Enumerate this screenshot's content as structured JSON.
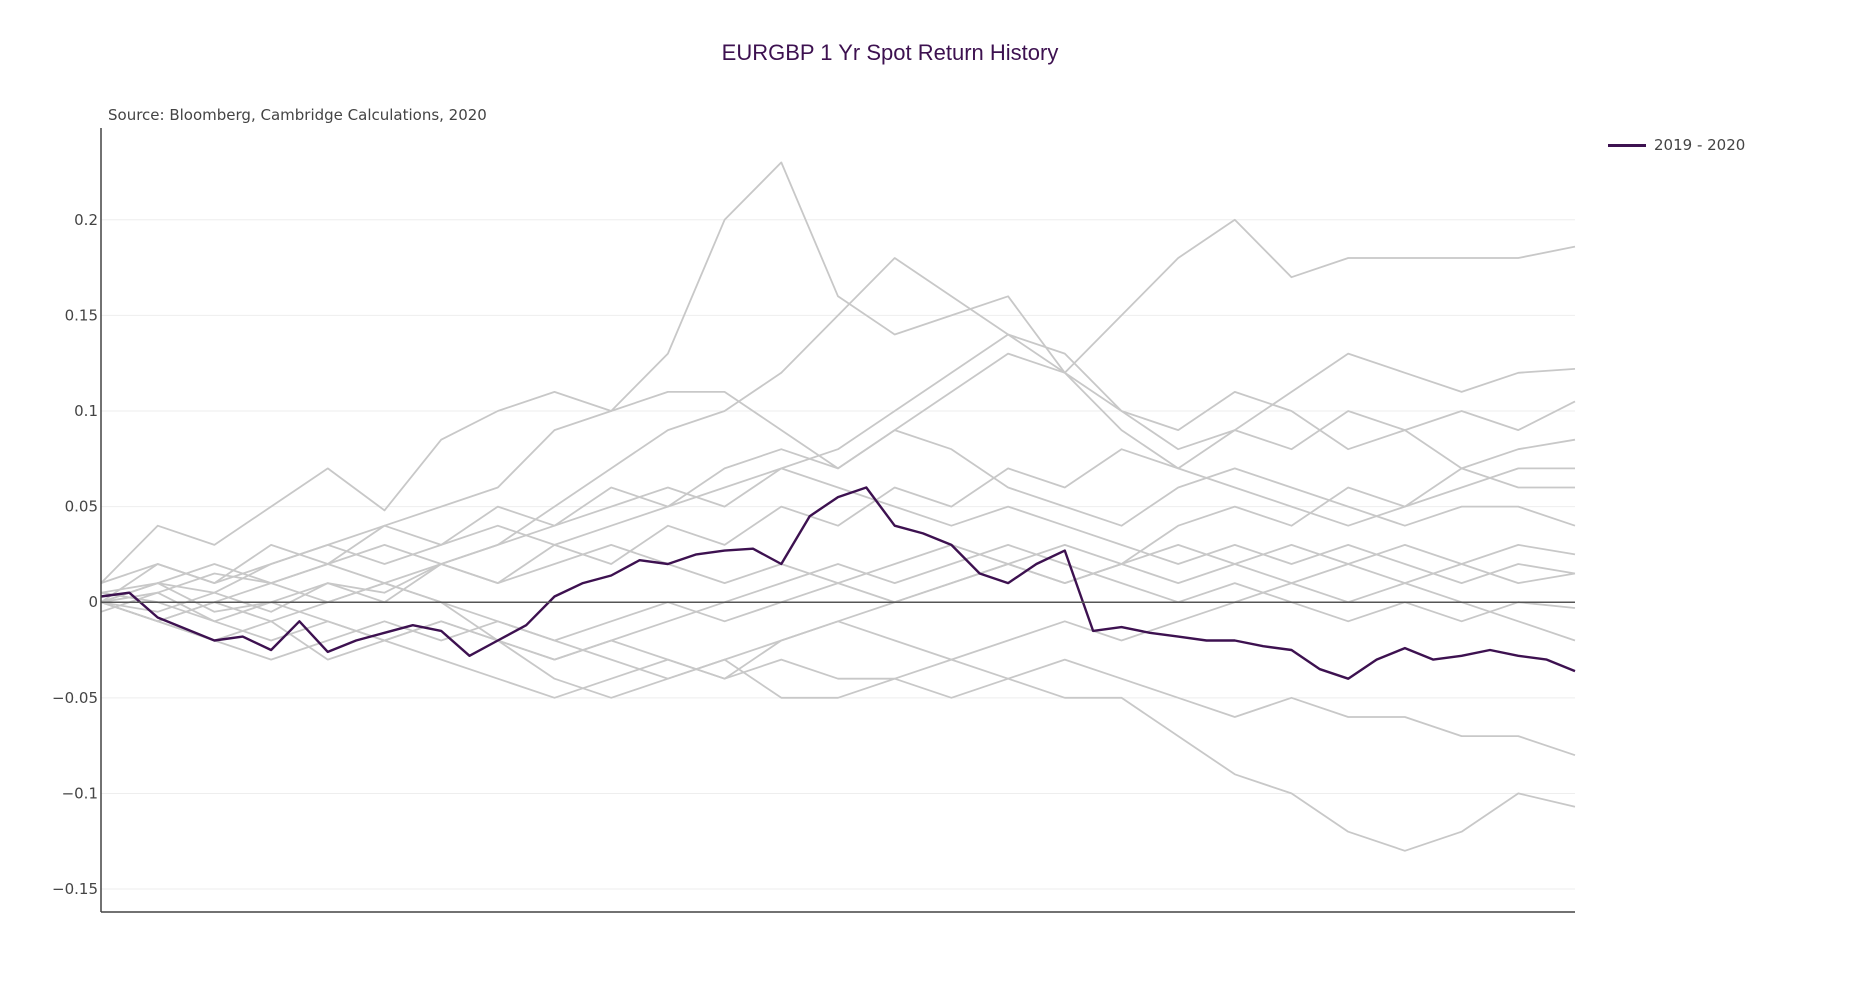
{
  "chart_data": {
    "type": "line",
    "title": "EURGBP 1 Yr Spot Return History",
    "annotation": "Source: Bloomberg, Cambridge Calculations, 2020",
    "xlabel": "",
    "ylabel": "",
    "ylim": [
      -0.162,
      0.248
    ],
    "y_ticks": [
      0.2,
      0.15,
      0.1,
      0.05,
      0,
      -0.05,
      -0.1,
      -0.15
    ],
    "y_tick_labels": [
      "0.2",
      "0.15",
      "0.1",
      "0.05",
      "0",
      "−0.05",
      "−0.1",
      "−0.15"
    ],
    "x_range": [
      0,
      260
    ],
    "grid": true,
    "legend_position": "top-right",
    "colors": {
      "highlight": "#3d1150",
      "history": "#c8c8c8",
      "zero_line": "#555555",
      "grid": "#eeeeee"
    },
    "series": [
      {
        "name": "2019 - 2020",
        "highlight": true,
        "x": [
          0,
          5,
          10,
          20,
          25,
          30,
          35,
          40,
          45,
          50,
          55,
          60,
          65,
          70,
          75,
          80,
          85,
          90,
          95,
          100,
          105,
          110,
          115,
          120,
          125,
          130,
          135,
          140,
          145,
          150,
          155,
          160,
          165,
          170,
          175,
          180,
          185,
          190,
          195,
          200,
          205,
          210,
          215,
          220,
          225,
          230,
          235,
          240,
          245,
          250,
          255,
          260
        ],
        "y": [
          0.003,
          0.005,
          -0.008,
          -0.02,
          -0.018,
          -0.025,
          -0.01,
          -0.026,
          -0.02,
          -0.016,
          -0.012,
          -0.015,
          -0.028,
          -0.02,
          -0.012,
          0.003,
          0.01,
          0.014,
          0.022,
          0.02,
          0.025,
          0.027,
          0.028,
          0.02,
          0.045,
          0.055,
          0.06,
          0.04,
          0.036,
          0.03,
          0.015,
          0.01,
          0.02,
          0.027,
          -0.015,
          -0.013,
          -0.016,
          -0.018,
          -0.02,
          -0.02,
          -0.023,
          -0.025,
          -0.035,
          -0.04,
          -0.03,
          -0.024,
          -0.03,
          -0.028,
          -0.025,
          -0.028,
          -0.03,
          -0.036
        ]
      },
      {
        "x": [
          0,
          10,
          20,
          30,
          40,
          50,
          60,
          70,
          80,
          90,
          100,
          110,
          120,
          130,
          140,
          150,
          160,
          170,
          180,
          190,
          200,
          210,
          220,
          230,
          240,
          250,
          260
        ],
        "y": [
          0.01,
          0.04,
          0.03,
          0.05,
          0.07,
          0.048,
          0.085,
          0.1,
          0.11,
          0.1,
          0.11,
          0.11,
          0.09,
          0.07,
          0.09,
          0.08,
          0.06,
          0.05,
          0.04,
          0.06,
          0.07,
          0.06,
          0.05,
          0.04,
          0.05,
          0.05,
          0.04
        ]
      },
      {
        "x": [
          0,
          10,
          20,
          30,
          40,
          50,
          60,
          70,
          80,
          90,
          100,
          110,
          120,
          130,
          140,
          150,
          160,
          170,
          180,
          190,
          200,
          210,
          220,
          230,
          240,
          250,
          260
        ],
        "y": [
          0.0,
          0.01,
          0.005,
          0.02,
          0.03,
          0.04,
          0.05,
          0.06,
          0.09,
          0.1,
          0.13,
          0.2,
          0.23,
          0.16,
          0.14,
          0.15,
          0.16,
          0.12,
          0.09,
          0.07,
          0.06,
          0.05,
          0.04,
          0.05,
          0.06,
          0.07,
          0.07
        ]
      },
      {
        "x": [
          0,
          10,
          20,
          30,
          40,
          50,
          60,
          70,
          80,
          90,
          100,
          110,
          120,
          130,
          140,
          150,
          160,
          170,
          180,
          190,
          200,
          210,
          220,
          230,
          240,
          250,
          260
        ],
        "y": [
          -0.005,
          0.005,
          -0.01,
          0.0,
          0.01,
          0.005,
          0.02,
          0.03,
          0.05,
          0.07,
          0.09,
          0.1,
          0.12,
          0.15,
          0.18,
          0.16,
          0.14,
          0.12,
          0.15,
          0.18,
          0.2,
          0.17,
          0.18,
          0.18,
          0.18,
          0.18,
          0.186
        ]
      },
      {
        "x": [
          0,
          10,
          20,
          30,
          40,
          50,
          60,
          70,
          80,
          90,
          100,
          110,
          120,
          130,
          140,
          150,
          160,
          170,
          180,
          190,
          200,
          210,
          220,
          230,
          240,
          250,
          260
        ],
        "y": [
          0.0,
          -0.01,
          0.0,
          0.01,
          0.02,
          0.01,
          0.0,
          -0.02,
          -0.04,
          -0.05,
          -0.04,
          -0.03,
          -0.05,
          -0.05,
          -0.04,
          -0.03,
          -0.04,
          -0.05,
          -0.05,
          -0.07,
          -0.09,
          -0.1,
          -0.12,
          -0.13,
          -0.12,
          -0.1,
          -0.107
        ]
      },
      {
        "x": [
          0,
          10,
          20,
          30,
          40,
          50,
          60,
          70,
          80,
          90,
          100,
          110,
          120,
          130,
          140,
          150,
          160,
          170,
          180,
          190,
          200,
          210,
          220,
          230,
          240,
          250,
          260
        ],
        "y": [
          0.005,
          0.0,
          -0.01,
          -0.02,
          -0.01,
          -0.02,
          -0.01,
          -0.02,
          -0.03,
          -0.02,
          -0.03,
          -0.04,
          -0.03,
          -0.04,
          -0.04,
          -0.05,
          -0.04,
          -0.03,
          -0.04,
          -0.05,
          -0.06,
          -0.05,
          -0.06,
          -0.06,
          -0.07,
          -0.07,
          -0.08
        ]
      },
      {
        "x": [
          0,
          10,
          20,
          30,
          40,
          50,
          60,
          70,
          80,
          90,
          100,
          110,
          120,
          130,
          140,
          150,
          160,
          170,
          180,
          190,
          200,
          210,
          220,
          230,
          240,
          250,
          260
        ],
        "y": [
          0.0,
          0.02,
          0.01,
          0.03,
          0.02,
          0.04,
          0.03,
          0.05,
          0.04,
          0.06,
          0.05,
          0.07,
          0.08,
          0.07,
          0.09,
          0.11,
          0.13,
          0.12,
          0.1,
          0.08,
          0.09,
          0.11,
          0.13,
          0.12,
          0.11,
          0.12,
          0.122
        ]
      },
      {
        "x": [
          0,
          10,
          20,
          30,
          40,
          50,
          60,
          70,
          80,
          90,
          100,
          110,
          120,
          130,
          140,
          150,
          160,
          170,
          180,
          190,
          200,
          210,
          220,
          230,
          240,
          250,
          260
        ],
        "y": [
          0.0,
          -0.005,
          0.005,
          -0.005,
          0.01,
          0.0,
          0.02,
          0.01,
          0.03,
          0.02,
          0.04,
          0.03,
          0.05,
          0.04,
          0.06,
          0.05,
          0.07,
          0.06,
          0.08,
          0.07,
          0.09,
          0.08,
          0.1,
          0.09,
          0.1,
          0.09,
          0.105
        ]
      },
      {
        "x": [
          0,
          10,
          20,
          30,
          40,
          50,
          60,
          70,
          80,
          90,
          100,
          110,
          120,
          130,
          140,
          150,
          160,
          170,
          180,
          190,
          200,
          210,
          220,
          230,
          240,
          250,
          260
        ],
        "y": [
          0.0,
          0.01,
          -0.005,
          0.0,
          -0.01,
          -0.02,
          -0.01,
          -0.02,
          -0.03,
          -0.02,
          -0.01,
          0.0,
          0.01,
          0.02,
          0.01,
          0.02,
          0.03,
          0.02,
          0.01,
          0.0,
          0.01,
          0.0,
          -0.01,
          0.0,
          -0.01,
          0.0,
          -0.003
        ]
      },
      {
        "x": [
          0,
          10,
          20,
          30,
          40,
          50,
          60,
          70,
          80,
          90,
          100,
          110,
          120,
          130,
          140,
          150,
          160,
          170,
          180,
          190,
          200,
          210,
          220,
          230,
          240,
          250,
          260
        ],
        "y": [
          0.005,
          0.01,
          0.02,
          0.01,
          0.0,
          0.01,
          0.02,
          0.01,
          0.02,
          0.03,
          0.02,
          0.01,
          0.02,
          0.01,
          0.02,
          0.03,
          0.02,
          0.01,
          0.02,
          0.03,
          0.02,
          0.01,
          0.02,
          0.01,
          0.02,
          0.01,
          0.015
        ]
      },
      {
        "x": [
          0,
          10,
          20,
          30,
          40,
          50,
          60,
          70,
          80,
          90,
          100,
          110,
          120,
          130,
          140,
          150,
          160,
          170,
          180,
          190,
          200,
          210,
          220,
          230,
          240,
          250,
          260
        ],
        "y": [
          0.0,
          -0.01,
          -0.02,
          -0.01,
          -0.03,
          -0.02,
          -0.03,
          -0.04,
          -0.05,
          -0.04,
          -0.03,
          -0.04,
          -0.02,
          -0.01,
          0.0,
          0.01,
          0.02,
          0.03,
          0.02,
          0.04,
          0.05,
          0.04,
          0.06,
          0.05,
          0.07,
          0.06,
          0.06
        ]
      },
      {
        "x": [
          0,
          10,
          20,
          30,
          40,
          50,
          60,
          70,
          80,
          90,
          100,
          110,
          120,
          130,
          140,
          150,
          160,
          170,
          180,
          190,
          200,
          210,
          220,
          230,
          240,
          250,
          260
        ],
        "y": [
          0.0,
          0.005,
          0.015,
          0.01,
          0.02,
          0.03,
          0.02,
          0.03,
          0.04,
          0.05,
          0.06,
          0.05,
          0.07,
          0.08,
          0.1,
          0.12,
          0.14,
          0.13,
          0.1,
          0.09,
          0.11,
          0.1,
          0.08,
          0.09,
          0.07,
          0.08,
          0.085
        ]
      },
      {
        "x": [
          0,
          10,
          20,
          30,
          40,
          50,
          60,
          70,
          80,
          90,
          100,
          110,
          120,
          130,
          140,
          150,
          160,
          170,
          180,
          190,
          200,
          210,
          220,
          230,
          240,
          250,
          260
        ],
        "y": [
          0.0,
          -0.01,
          0.0,
          -0.01,
          0.0,
          0.01,
          0.0,
          -0.01,
          -0.02,
          -0.03,
          -0.04,
          -0.03,
          -0.02,
          -0.01,
          -0.02,
          -0.03,
          -0.02,
          -0.01,
          -0.02,
          -0.01,
          0.0,
          0.01,
          0.0,
          0.01,
          0.0,
          -0.01,
          -0.02
        ]
      },
      {
        "x": [
          0,
          10,
          20,
          30,
          40,
          50,
          60,
          70,
          80,
          90,
          100,
          110,
          120,
          130,
          140,
          150,
          160,
          170,
          180,
          190,
          200,
          210,
          220,
          230,
          240,
          250,
          260
        ],
        "y": [
          0.01,
          0.02,
          0.01,
          0.02,
          0.03,
          0.02,
          0.03,
          0.04,
          0.03,
          0.04,
          0.05,
          0.06,
          0.07,
          0.06,
          0.05,
          0.04,
          0.05,
          0.04,
          0.03,
          0.02,
          0.03,
          0.02,
          0.03,
          0.02,
          0.01,
          0.02,
          0.015
        ]
      },
      {
        "x": [
          0,
          10,
          20,
          30,
          40,
          50,
          60,
          70,
          80,
          90,
          100,
          110,
          120,
          130,
          140,
          150,
          160,
          170,
          180,
          190,
          200,
          210,
          220,
          230,
          240,
          250,
          260
        ],
        "y": [
          0.0,
          -0.01,
          -0.02,
          -0.03,
          -0.02,
          -0.01,
          -0.02,
          -0.01,
          -0.02,
          -0.01,
          0.0,
          -0.01,
          0.0,
          0.01,
          0.0,
          0.01,
          0.02,
          0.01,
          0.02,
          0.01,
          0.02,
          0.03,
          0.02,
          0.03,
          0.02,
          0.03,
          0.025
        ]
      }
    ]
  }
}
